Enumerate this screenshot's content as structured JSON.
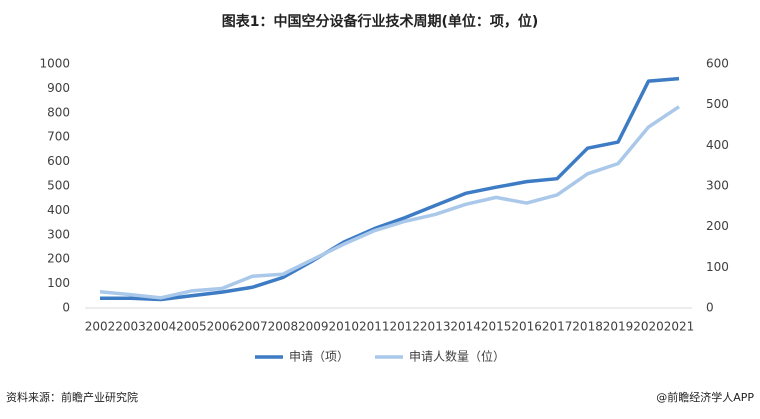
{
  "chart_data": {
    "type": "line",
    "title": "图表1：中国空分设备行业技术周期(单位：项，位)",
    "categories": [
      "2002",
      "2003",
      "2004",
      "2005",
      "2006",
      "2007",
      "2008",
      "2009",
      "2010",
      "2011",
      "2012",
      "2013",
      "2014",
      "2015",
      "2016",
      "2017",
      "2018",
      "2019",
      "2020",
      "2021"
    ],
    "series": [
      {
        "name": "申请（项）",
        "color": "#3d7cc4",
        "values": [
          40,
          40,
          35,
          50,
          65,
          85,
          125,
          195,
          270,
          325,
          370,
          420,
          470,
          495,
          518,
          530,
          655,
          680,
          930,
          940
        ]
      },
      {
        "name": "申请人数量（位）",
        "color": "#aac8ea",
        "axis": "y2",
        "values": [
          40,
          33,
          25,
          42,
          48,
          78,
          83,
          120,
          157,
          190,
          213,
          230,
          255,
          272,
          258,
          278,
          330,
          355,
          445,
          495
        ]
      }
    ],
    "ylim": [
      0,
      1000
    ],
    "yticks": [
      0,
      100,
      200,
      300,
      400,
      500,
      600,
      700,
      800,
      900,
      1000
    ],
    "y2lim": [
      0,
      600
    ],
    "y2ticks": [
      0,
      100,
      200,
      300,
      400,
      500,
      600
    ],
    "legend": "bottom",
    "source": "资料来源：前瞻产业研究院",
    "credit": "@前瞻经济学人APP"
  }
}
